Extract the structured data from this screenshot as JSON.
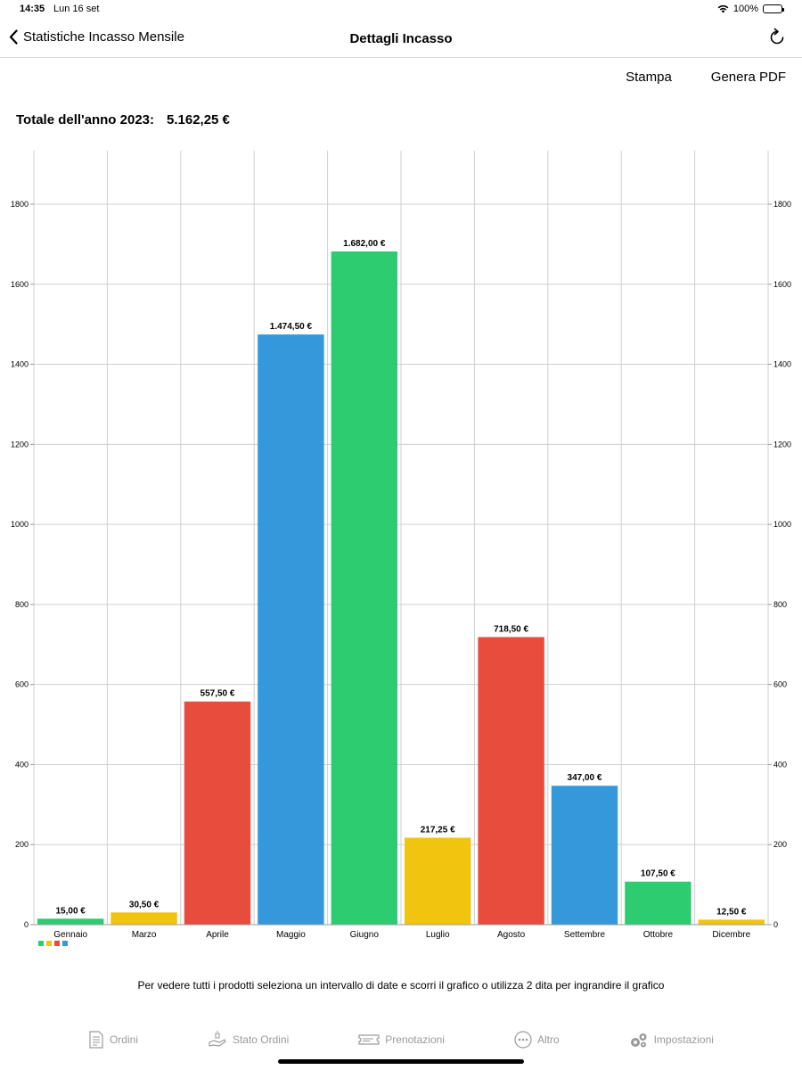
{
  "status_bar": {
    "time": "14:35",
    "date": "Lun 16 set",
    "battery": "100%"
  },
  "nav": {
    "back_label": "Statistiche Incasso Mensile",
    "title": "Dettagli Incasso"
  },
  "actions": {
    "print_label": "Stampa",
    "pdf_label": "Genera PDF"
  },
  "total": {
    "label": "Totale dell'anno 2023:",
    "value": "5.162,25 €"
  },
  "hint": "Per vedere tutti i prodotti seleziona un intervallo di date e scorri il grafico o utilizza 2 dita per ingrandire il grafico",
  "tabs": [
    {
      "label": "Ordini",
      "icon": "document-icon"
    },
    {
      "label": "Stato Ordini",
      "icon": "hand-icon"
    },
    {
      "label": "Prenotazioni",
      "icon": "ticket-icon"
    },
    {
      "label": "Altro",
      "icon": "more-icon"
    },
    {
      "label": "Impostazioni",
      "icon": "gears-icon"
    }
  ],
  "colors": {
    "green": "#2ecc71",
    "yellow": "#f1c40f",
    "red": "#e74c3c",
    "blue": "#3498db",
    "grid": "#cfcfcf"
  },
  "legend_colors": [
    "#2ecc71",
    "#f1c40f",
    "#e74c3c",
    "#3498db"
  ],
  "chart_data": {
    "type": "bar",
    "categories": [
      "Gennaio",
      "Marzo",
      "Aprile",
      "Maggio",
      "Giugno",
      "Luglio",
      "Agosto",
      "Settembre",
      "Ottobre",
      "Dicembre"
    ],
    "values": [
      15.0,
      30.5,
      557.5,
      1474.5,
      1682.0,
      217.25,
      718.5,
      347.0,
      107.5,
      12.5
    ],
    "value_labels": [
      "15,00 €",
      "30,50 €",
      "557,50 €",
      "1.474,50 €",
      "1.682,00 €",
      "217,25 €",
      "718,50 €",
      "347,00 €",
      "107,50 €",
      "12,50 €"
    ],
    "bar_colors": [
      "#2ecc71",
      "#f1c40f",
      "#e74c3c",
      "#3498db",
      "#2ecc71",
      "#f1c40f",
      "#e74c3c",
      "#3498db",
      "#2ecc71",
      "#f1c40f"
    ],
    "yticks": [
      0,
      200,
      400,
      600,
      800,
      1000,
      1200,
      1400,
      1600,
      1800
    ],
    "ylim": [
      0,
      1933
    ],
    "grid": true,
    "y_axis_both_sides": true
  }
}
